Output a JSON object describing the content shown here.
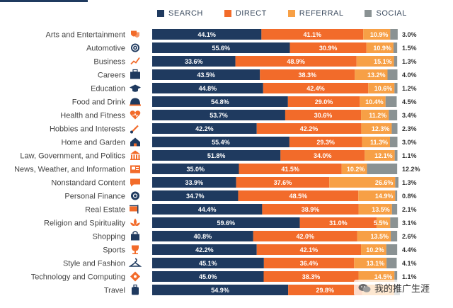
{
  "chart_data": {
    "type": "bar",
    "orientation": "horizontal",
    "stacked": true,
    "percent": true,
    "title": "",
    "xlabel": "",
    "ylabel": "",
    "xlim": [
      0,
      100
    ],
    "legend_position": "top",
    "grid": false,
    "categories": [
      "Arts and Entertainment",
      "Automotive",
      "Business",
      "Careers",
      "Education",
      "Food and Drink",
      "Health and Fitness",
      "Hobbies and Interests",
      "Home and Garden",
      "Law, Government, and Politics",
      "News, Weather, and Information",
      "Nonstandard Content",
      "Personal Finance",
      "Real Estate",
      "Religion and Spirituality",
      "Shopping",
      "Sports",
      "Style and Fashion",
      "Technology and Computing",
      "Travel"
    ],
    "series": [
      {
        "name": "SEARCH",
        "color": "#1f3a5f",
        "values": [
          44.1,
          55.6,
          33.6,
          43.5,
          44.8,
          54.8,
          53.7,
          42.2,
          55.4,
          51.8,
          35.0,
          33.9,
          34.7,
          44.4,
          59.6,
          40.8,
          42.2,
          45.1,
          45.0,
          54.9
        ],
        "labels": [
          "44.1%",
          "55.6%",
          "33.6%",
          "43.5%",
          "44.8%",
          "54.8%",
          "53.7%",
          "42.2%",
          "55.4%",
          "51.8%",
          "35.0%",
          "33.9%",
          "34.7%",
          "44.4%",
          "59.6%",
          "40.8%",
          "42.2%",
          "45.1%",
          "45.0%",
          "54.9%"
        ]
      },
      {
        "name": "DIRECT",
        "color": "#f26b2a",
        "values": [
          41.1,
          30.9,
          48.9,
          38.3,
          42.4,
          29.0,
          30.6,
          42.2,
          29.3,
          34.0,
          41.5,
          37.6,
          48.5,
          38.9,
          31.0,
          42.0,
          42.1,
          36.4,
          38.3,
          29.8
        ],
        "labels": [
          "41.1%",
          "30.9%",
          "48.9%",
          "38.3%",
          "42.4%",
          "29.0%",
          "30.6%",
          "42.2%",
          "29.3%",
          "34.0%",
          "41.5%",
          "37.6%",
          "48.5%",
          "38.9%",
          "31.0%",
          "42.0%",
          "42.1%",
          "36.4%",
          "38.3%",
          "29.8%"
        ]
      },
      {
        "name": "REFERRAL",
        "color": "#f7a046",
        "values": [
          10.9,
          10.9,
          15.1,
          13.2,
          10.6,
          10.4,
          11.2,
          12.3,
          11.3,
          12.1,
          10.2,
          26.6,
          14.9,
          13.5,
          5.5,
          13.5,
          10.2,
          13.1,
          14.5,
          13.0
        ],
        "labels": [
          "10.9%",
          "10.9%",
          "15.1%",
          "13.2%",
          "10.6%",
          "10.4%",
          "11.2%",
          "12.3%",
          "11.3%",
          "12.1%",
          "10.2%",
          "26.6%",
          "14.9%",
          "13.5%",
          "5.5%",
          "13.5%",
          "10.2%",
          "13.1%",
          "14.5%",
          ""
        ]
      },
      {
        "name": "SOCIAL",
        "color": "#8a9293",
        "values": [
          3.0,
          1.5,
          1.3,
          4.0,
          1.2,
          4.5,
          3.4,
          2.3,
          3.0,
          1.1,
          12.2,
          1.3,
          0.8,
          2.1,
          3.1,
          2.6,
          4.4,
          4.1,
          1.1,
          2.3
        ],
        "labels": [
          "3.0%",
          "1.5%",
          "1.3%",
          "4.0%",
          "1.2%",
          "4.5%",
          "3.4%",
          "2.3%",
          "3.0%",
          "1.1%",
          "12.2%",
          "1.3%",
          "0.8%",
          "2.1%",
          "3.1%",
          "2.6%",
          "4.4%",
          "4.1%",
          "1.1%",
          ""
        ]
      }
    ],
    "category_icons": [
      "theater-masks-icon",
      "steering-wheel-icon",
      "chart-icon",
      "briefcase-icon",
      "graduation-cap-icon",
      "food-cloche-icon",
      "heart-pulse-icon",
      "paint-brush-icon",
      "house-icon",
      "courthouse-icon",
      "newspaper-icon",
      "speech-bubble-icon",
      "piggy-bank-icon",
      "for-sale-sign-icon",
      "lotus-icon",
      "shopping-bag-icon",
      "trophy-icon",
      "clothes-hanger-icon",
      "circuit-icon",
      "luggage-icon"
    ],
    "icon_color": "#f26b2a"
  },
  "watermark": {
    "text": "我的推广生涯"
  }
}
